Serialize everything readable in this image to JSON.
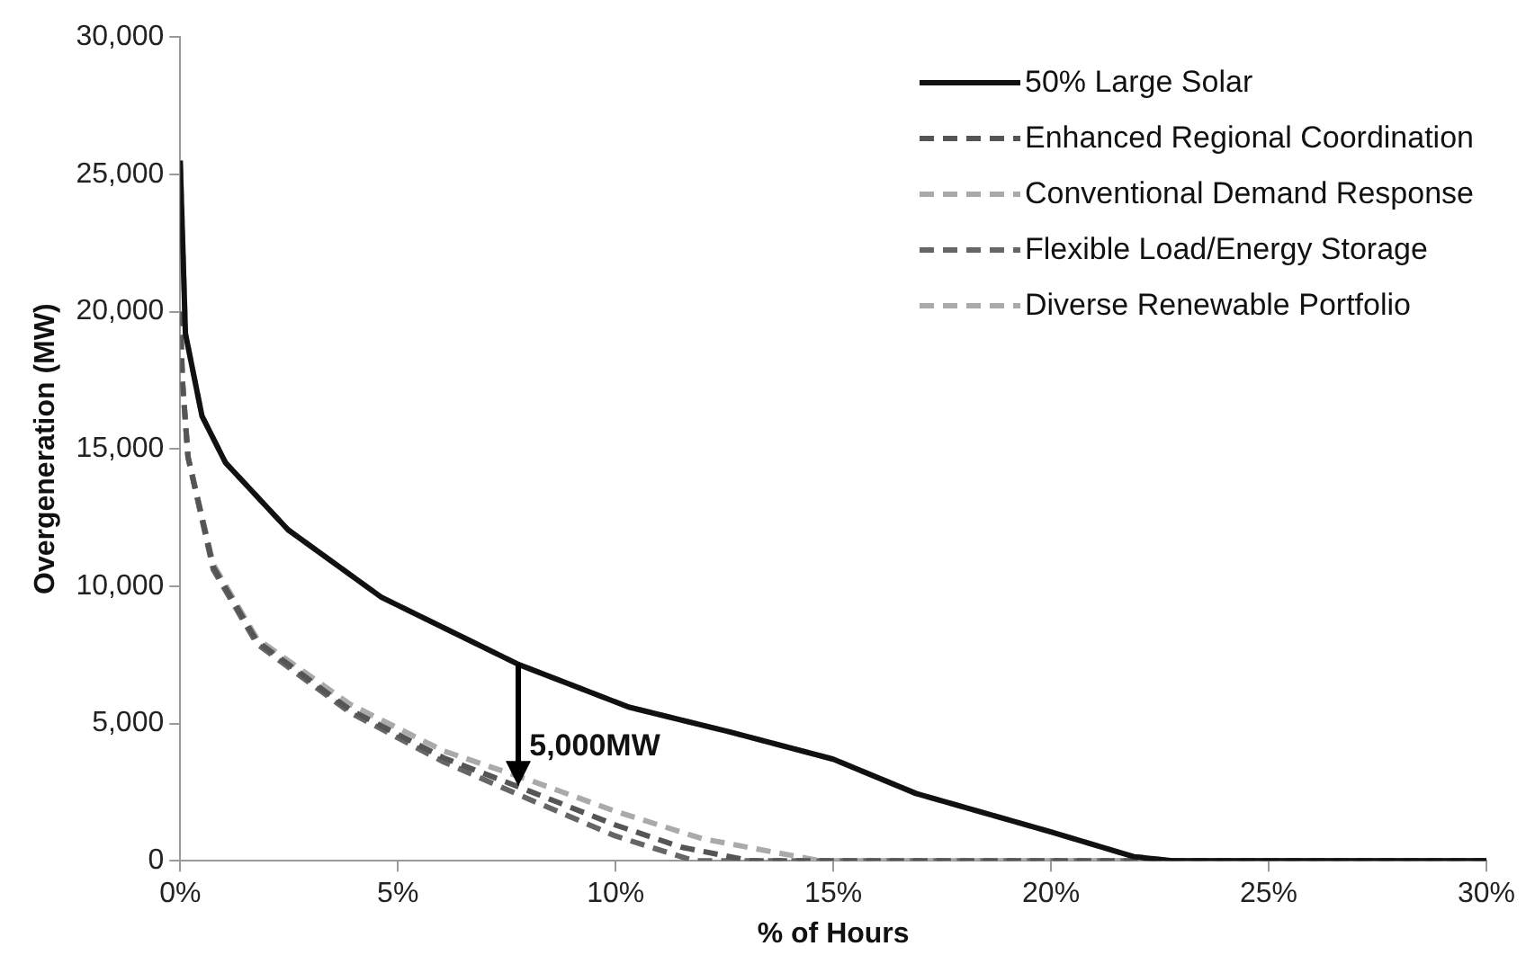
{
  "chart_data": {
    "type": "line",
    "xlabel": "% of Hours",
    "ylabel": "Overgeneration (MW)",
    "xlim": [
      0,
      30
    ],
    "xticks": [
      {
        "value": 0,
        "label": "0%"
      },
      {
        "value": 5,
        "label": "5%"
      },
      {
        "value": 10,
        "label": "10%"
      },
      {
        "value": 15,
        "label": "15%"
      },
      {
        "value": 20,
        "label": "20%"
      },
      {
        "value": 25,
        "label": "25%"
      },
      {
        "value": 30,
        "label": "30%"
      }
    ],
    "ylim": [
      0,
      30000
    ],
    "yticks": [
      {
        "value": 0,
        "label": "0"
      },
      {
        "value": 5000,
        "label": "5,000"
      },
      {
        "value": 10000,
        "label": "10,000"
      },
      {
        "value": 15000,
        "label": "15,000"
      },
      {
        "value": 20000,
        "label": "20,000"
      },
      {
        "value": 25000,
        "label": "25,000"
      },
      {
        "value": 30000,
        "label": "30,000"
      }
    ],
    "grid": false,
    "legend": "top right",
    "marker": "none",
    "annotations": [
      {
        "text": "5,000MW",
        "x": 7.77,
        "y": 7150
      }
    ],
    "series": [
      {
        "name": "50% Large Solar",
        "color": "#111111",
        "line_style": "solid",
        "x": [
          0,
          0.12,
          0.5,
          1.04,
          2.48,
          4.62,
          7.77,
          10.3,
          12.6,
          15,
          16.9,
          20,
          21.9,
          22.8,
          30
        ],
        "values": [
          25500,
          19200,
          16200,
          14500,
          12050,
          9600,
          7150,
          5600,
          4700,
          3700,
          2450,
          1050,
          150,
          0,
          0
        ]
      },
      {
        "name": "Enhanced Regional Coordination",
        "color": "#555555",
        "line_style": "dashed",
        "x": [
          0,
          0.05,
          0.18,
          0.76,
          1.76,
          3.9,
          6.05,
          8,
          10,
          11.5,
          13.1,
          30
        ],
        "values": [
          20000,
          17500,
          14700,
          10700,
          8000,
          5500,
          3750,
          2550,
          1300,
          500,
          0,
          0
        ]
      },
      {
        "name": "Conventional Demand Response",
        "color": "#aaaaaa",
        "line_style": "dashed",
        "x": [
          0,
          0.05,
          0.18,
          0.76,
          1.76,
          3.9,
          6.05,
          8,
          10,
          12,
          14.7,
          30
        ],
        "values": [
          20000,
          17500,
          14700,
          10800,
          8100,
          5700,
          4000,
          2950,
          1800,
          800,
          0,
          0
        ]
      },
      {
        "name": "Flexible Load/Energy Storage",
        "color": "#666666",
        "line_style": "dashed",
        "x": [
          0,
          0.05,
          0.18,
          0.76,
          1.76,
          3.9,
          6.05,
          8,
          10,
          11.8,
          30
        ],
        "values": [
          20000,
          17500,
          14700,
          10600,
          7900,
          5400,
          3600,
          2250,
          900,
          0,
          0
        ]
      },
      {
        "name": "Diverse Renewable Portfolio",
        "color": "#aaaaaa",
        "line_style": "dashed",
        "x": [
          0,
          0.12,
          0.5,
          1.04,
          2.48,
          4.62,
          7.77,
          10.3,
          12.6,
          15,
          16.9,
          20,
          21.9,
          22.8,
          30
        ],
        "values": [
          25500,
          19200,
          16200,
          14500,
          12050,
          9600,
          7150,
          5600,
          4700,
          3700,
          2450,
          1050,
          150,
          0,
          0
        ]
      }
    ]
  }
}
